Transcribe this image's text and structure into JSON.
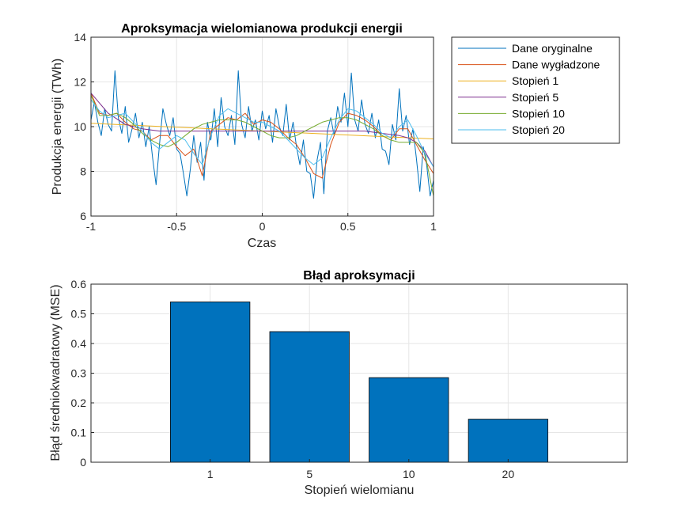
{
  "chart_data": [
    {
      "type": "line",
      "title": "Aproksymacja wielomianowa produkcji energii",
      "xlabel": "Czas",
      "ylabel": "Produkcja energii (TWh)",
      "xlim": [
        -1,
        1
      ],
      "ylim": [
        6,
        14
      ],
      "xticks": [
        "-1",
        "-0.5",
        "0",
        "0.5",
        "1"
      ],
      "yticks": [
        "6",
        "8",
        "10",
        "12",
        "14"
      ],
      "grid": true,
      "legend_position": "outside-right-top",
      "series": [
        {
          "name": "Dane oryginalne",
          "color": "#0072BD",
          "x": [
            -1.0,
            -0.98,
            -0.96,
            -0.94,
            -0.92,
            -0.9,
            -0.88,
            -0.86,
            -0.84,
            -0.82,
            -0.8,
            -0.78,
            -0.76,
            -0.74,
            -0.72,
            -0.7,
            -0.68,
            -0.66,
            -0.64,
            -0.62,
            -0.6,
            -0.58,
            -0.56,
            -0.54,
            -0.52,
            -0.5,
            -0.48,
            -0.46,
            -0.44,
            -0.42,
            -0.4,
            -0.38,
            -0.36,
            -0.34,
            -0.32,
            -0.3,
            -0.28,
            -0.26,
            -0.24,
            -0.22,
            -0.2,
            -0.18,
            -0.16,
            -0.14,
            -0.12,
            -0.1,
            -0.08,
            -0.06,
            -0.04,
            -0.02,
            0.0,
            0.02,
            0.04,
            0.06,
            0.08,
            0.1,
            0.12,
            0.14,
            0.16,
            0.18,
            0.2,
            0.22,
            0.24,
            0.26,
            0.28,
            0.3,
            0.32,
            0.34,
            0.36,
            0.38,
            0.4,
            0.42,
            0.44,
            0.46,
            0.48,
            0.5,
            0.52,
            0.54,
            0.56,
            0.58,
            0.6,
            0.62,
            0.64,
            0.66,
            0.68,
            0.7,
            0.72,
            0.74,
            0.76,
            0.78,
            0.8,
            0.82,
            0.84,
            0.86,
            0.88,
            0.9,
            0.92,
            0.94,
            0.96,
            0.98,
            1.0
          ],
          "y": [
            10.3,
            11.1,
            10.2,
            9.6,
            10.8,
            10.1,
            9.8,
            12.5,
            10.4,
            9.7,
            10.9,
            9.3,
            9.9,
            10.6,
            9.5,
            10.2,
            9.1,
            10.0,
            8.6,
            7.4,
            9.2,
            10.8,
            10.1,
            9.6,
            10.4,
            9.0,
            8.8,
            7.9,
            6.9,
            8.1,
            9.6,
            8.4,
            9.3,
            7.6,
            10.2,
            9.4,
            10.8,
            9.1,
            11.3,
            10.0,
            9.6,
            10.5,
            9.2,
            12.5,
            10.1,
            9.5,
            10.9,
            9.8,
            10.3,
            9.4,
            10.7,
            9.9,
            10.5,
            9.3,
            10.8,
            10.0,
            9.6,
            11.0,
            9.4,
            10.2,
            9.1,
            8.3,
            9.4,
            8.0,
            7.9,
            6.8,
            8.5,
            9.3,
            7.0,
            9.8,
            10.4,
            9.6,
            10.9,
            10.2,
            11.5,
            10.0,
            12.4,
            10.3,
            9.8,
            11.2,
            10.1,
            9.7,
            10.6,
            9.5,
            10.3,
            9.0,
            8.9,
            8.3,
            10.1,
            9.4,
            11.7,
            9.8,
            10.5,
            9.2,
            9.9,
            8.6,
            7.1,
            9.1,
            8.3,
            6.9,
            7.6
          ]
        },
        {
          "name": "Dane wygładzone",
          "color": "#D95319",
          "x": [
            -1.0,
            -0.95,
            -0.9,
            -0.85,
            -0.8,
            -0.75,
            -0.7,
            -0.65,
            -0.6,
            -0.55,
            -0.5,
            -0.45,
            -0.4,
            -0.35,
            -0.3,
            -0.25,
            -0.2,
            -0.15,
            -0.1,
            -0.05,
            0.0,
            0.05,
            0.1,
            0.15,
            0.2,
            0.25,
            0.3,
            0.35,
            0.4,
            0.45,
            0.5,
            0.55,
            0.6,
            0.65,
            0.7,
            0.75,
            0.8,
            0.85,
            0.9,
            0.95,
            1.0
          ],
          "y": [
            11.5,
            10.6,
            10.5,
            10.6,
            10.2,
            9.9,
            9.8,
            9.4,
            9.6,
            9.6,
            9.1,
            8.7,
            9.0,
            7.8,
            9.8,
            10.1,
            10.4,
            10.3,
            10.6,
            10.1,
            10.3,
            10.2,
            9.9,
            9.5,
            9.2,
            8.6,
            7.9,
            7.7,
            9.2,
            10.2,
            10.6,
            10.5,
            10.3,
            10.0,
            9.6,
            9.4,
            9.9,
            9.9,
            9.2,
            8.5,
            7.9
          ]
        },
        {
          "name": "Stopień 1",
          "color": "#EDB120",
          "x": [
            -1.0,
            1.0
          ],
          "y": [
            10.15,
            9.45
          ]
        },
        {
          "name": "Stopień 5",
          "color": "#7E2F8E",
          "x": [
            -1.0,
            -0.9,
            -0.8,
            -0.7,
            -0.6,
            -0.5,
            -0.4,
            -0.3,
            -0.2,
            -0.1,
            0.0,
            0.1,
            0.2,
            0.3,
            0.4,
            0.5,
            0.6,
            0.7,
            0.8,
            0.85,
            0.9,
            0.95,
            1.0
          ],
          "y": [
            11.5,
            10.6,
            10.1,
            9.9,
            9.8,
            9.8,
            9.8,
            9.8,
            9.8,
            9.8,
            9.8,
            9.8,
            9.8,
            9.8,
            9.8,
            9.8,
            9.8,
            9.7,
            9.6,
            9.5,
            9.3,
            8.9,
            8.2
          ]
        },
        {
          "name": "Stopień 10",
          "color": "#77AC30",
          "x": [
            -1.0,
            -0.95,
            -0.9,
            -0.85,
            -0.8,
            -0.75,
            -0.7,
            -0.65,
            -0.6,
            -0.55,
            -0.5,
            -0.45,
            -0.4,
            -0.35,
            -0.3,
            -0.25,
            -0.2,
            -0.15,
            -0.1,
            -0.05,
            0.0,
            0.05,
            0.1,
            0.15,
            0.2,
            0.25,
            0.3,
            0.35,
            0.4,
            0.45,
            0.5,
            0.55,
            0.6,
            0.65,
            0.7,
            0.75,
            0.8,
            0.85,
            0.9,
            0.95,
            1.0
          ],
          "y": [
            11.4,
            10.5,
            10.5,
            10.6,
            10.4,
            10.1,
            9.7,
            9.4,
            9.2,
            9.1,
            9.3,
            9.6,
            9.9,
            10.1,
            10.2,
            10.3,
            10.3,
            10.3,
            10.2,
            10.0,
            9.8,
            9.6,
            9.5,
            9.5,
            9.6,
            9.8,
            10.0,
            10.2,
            10.3,
            10.4,
            10.4,
            10.3,
            10.1,
            9.9,
            9.6,
            9.4,
            9.3,
            9.3,
            9.3,
            8.8,
            6.9
          ]
        },
        {
          "name": "Stopień 20",
          "color": "#4DBEEE",
          "x": [
            -1.0,
            -0.95,
            -0.9,
            -0.85,
            -0.8,
            -0.75,
            -0.7,
            -0.65,
            -0.6,
            -0.55,
            -0.5,
            -0.45,
            -0.4,
            -0.35,
            -0.3,
            -0.25,
            -0.2,
            -0.15,
            -0.1,
            -0.05,
            0.0,
            0.05,
            0.1,
            0.15,
            0.2,
            0.25,
            0.3,
            0.35,
            0.4,
            0.45,
            0.5,
            0.55,
            0.6,
            0.65,
            0.7,
            0.75,
            0.8,
            0.85,
            0.9,
            0.95,
            1.0
          ],
          "y": [
            11.2,
            10.7,
            10.4,
            10.5,
            10.6,
            10.2,
            9.8,
            9.3,
            9.0,
            9.3,
            9.6,
            9.4,
            8.8,
            8.3,
            9.6,
            10.5,
            10.8,
            10.6,
            10.4,
            10.2,
            10.2,
            10.0,
            9.8,
            9.4,
            9.0,
            8.6,
            8.3,
            8.6,
            9.5,
            10.3,
            10.8,
            10.7,
            10.4,
            10.1,
            9.7,
            9.5,
            10.0,
            10.3,
            9.6,
            8.8,
            8.2
          ]
        }
      ]
    },
    {
      "type": "bar",
      "title": "Błąd aproksymacji",
      "xlabel": "Stopień wielomianu",
      "ylabel": "Błąd średniokwadratowy (MSE)",
      "categories": [
        "1",
        "5",
        "10",
        "20"
      ],
      "values": [
        0.54,
        0.44,
        0.285,
        0.145
      ],
      "ylim": [
        0,
        0.6
      ],
      "yticks": [
        "0",
        "0.1",
        "0.2",
        "0.3",
        "0.4",
        "0.5",
        "0.6"
      ],
      "grid": true,
      "bar_color": "#0072BD"
    }
  ]
}
